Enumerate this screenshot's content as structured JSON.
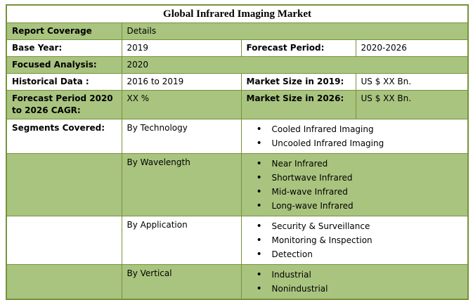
{
  "title": "Global Infrared Imaging Market",
  "colors": {
    "row_green": "#a9c47f",
    "row_white": "#ffffff",
    "border_green": "#76923c",
    "text": "#000000"
  },
  "rows": {
    "report_coverage": {
      "label": "Report Coverage",
      "value": "Details"
    },
    "base_year": {
      "label": "Base Year:",
      "value": "2019",
      "label2": "Forecast Period:",
      "value2": "2020-2026"
    },
    "focused_analysis": {
      "label": "Focused Analysis:",
      "value": "2020"
    },
    "historical_data": {
      "label": "Historical Data :",
      "value": "2016 to 2019",
      "label2": "Market Size in 2019:",
      "value2": "US $ XX Bn."
    },
    "forecast_cagr": {
      "label": "Forecast Period 2020 to 2026 CAGR:",
      "value": "XX %",
      "label2": "Market Size in 2026:",
      "value2": "US $ XX Bn."
    },
    "segments": {
      "label": "Segments Covered:",
      "groups": [
        {
          "name": "By Technology",
          "items": [
            "Cooled Infrared Imaging",
            "Uncooled Infrared Imaging"
          ]
        },
        {
          "name": "By Wavelength",
          "items": [
            "Near Infrared",
            "Shortwave Infrared",
            "Mid-wave Infrared",
            "Long-wave Infrared"
          ]
        },
        {
          "name": "By Application",
          "items": [
            "Security & Surveillance",
            "Monitoring & Inspection",
            "Detection"
          ]
        },
        {
          "name": "By Vertical",
          "items": [
            "Industrial",
            "Nonindustrial"
          ]
        }
      ]
    }
  }
}
